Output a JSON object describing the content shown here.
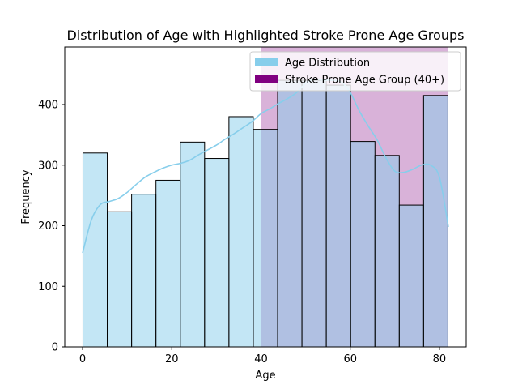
{
  "chart_data": {
    "type": "bar",
    "title": "Distribution of Age with Highlighted Stroke Prone Age Groups",
    "xlabel": "Age",
    "ylabel": "Frequency",
    "xlim": [
      -4,
      86
    ],
    "ylim": [
      0,
      495
    ],
    "xticks": [
      0,
      20,
      40,
      60,
      80
    ],
    "yticks": [
      0,
      100,
      200,
      300,
      400
    ],
    "bin_width": 5.455,
    "bins": [
      {
        "start": 0.08,
        "count": 320
      },
      {
        "start": 5.54,
        "count": 223
      },
      {
        "start": 10.99,
        "count": 252
      },
      {
        "start": 16.45,
        "count": 275
      },
      {
        "start": 21.9,
        "count": 338
      },
      {
        "start": 27.36,
        "count": 311
      },
      {
        "start": 32.81,
        "count": 380
      },
      {
        "start": 38.27,
        "count": 359
      },
      {
        "start": 43.72,
        "count": 440
      },
      {
        "start": 49.18,
        "count": 440
      },
      {
        "start": 54.63,
        "count": 432
      },
      {
        "start": 60.09,
        "count": 339
      },
      {
        "start": 65.54,
        "count": 316
      },
      {
        "start": 71.0,
        "count": 234
      },
      {
        "start": 76.45,
        "count": 415
      }
    ],
    "kde": {
      "x": [
        0,
        2,
        4,
        6,
        8,
        10,
        12,
        14,
        16,
        18,
        20,
        22,
        24,
        26,
        28,
        30,
        32,
        34,
        36,
        38,
        40,
        42,
        44,
        46,
        48,
        50,
        52,
        54,
        56,
        58,
        60,
        62,
        64,
        66,
        68,
        70,
        72,
        74,
        76,
        78,
        80,
        82
      ],
      "y": [
        155,
        210,
        235,
        240,
        245,
        255,
        268,
        280,
        288,
        295,
        300,
        303,
        308,
        317,
        325,
        333,
        343,
        352,
        362,
        372,
        385,
        393,
        402,
        410,
        420,
        435,
        442,
        440,
        440,
        437,
        420,
        390,
        365,
        342,
        312,
        290,
        288,
        293,
        300,
        300,
        280,
        198
      ]
    },
    "highlight": {
      "from": 40,
      "to": 82
    },
    "legend": {
      "position": "top-right",
      "entries": [
        {
          "label": "Age Distribution",
          "color": "#87ceeb"
        },
        {
          "label": "Stroke Prone Age Group (40+)",
          "color": "#800080"
        }
      ]
    },
    "colors": {
      "bar_fill": "#87ceeb",
      "bar_edge": "#000000",
      "kde_line": "#87ceeb",
      "highlight": "#800080"
    }
  }
}
